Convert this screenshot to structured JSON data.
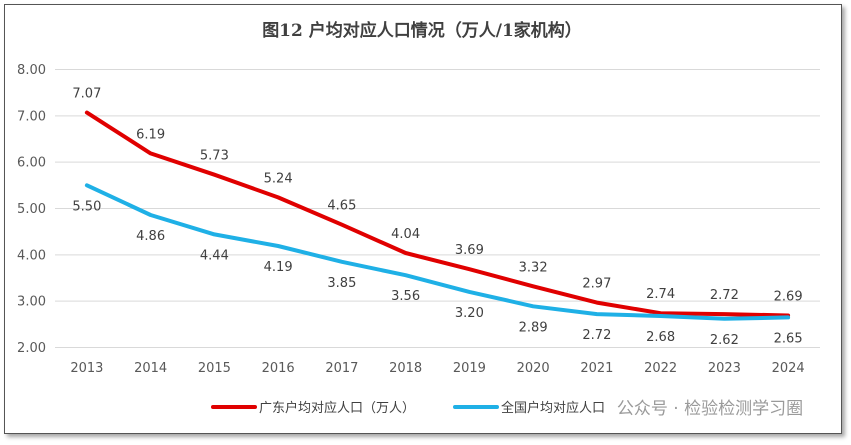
{
  "chart_data": {
    "type": "line",
    "title": "图12  户均对应人口情况（万人/1家机构）",
    "categories": [
      "2013",
      "2014",
      "2015",
      "2016",
      "2017",
      "2018",
      "2019",
      "2020",
      "2021",
      "2022",
      "2023",
      "2024"
    ],
    "series": [
      {
        "name": "广东户均对应人口（万人）",
        "color": "#e00000",
        "values": [
          7.07,
          6.19,
          5.73,
          5.24,
          4.65,
          4.04,
          3.69,
          3.32,
          2.97,
          2.74,
          2.72,
          2.69
        ]
      },
      {
        "name": "全国户均对应人口",
        "color": "#1fb0e6",
        "values": [
          5.5,
          4.86,
          4.44,
          4.19,
          3.85,
          3.56,
          3.2,
          2.89,
          2.72,
          2.68,
          2.62,
          2.65
        ]
      }
    ],
    "ylim": [
      2.0,
      8.0
    ],
    "yticks": [
      "2.00",
      "3.00",
      "4.00",
      "5.00",
      "6.00",
      "7.00",
      "8.00"
    ],
    "grid": true,
    "legend": "bottom"
  },
  "watermark": "公众号 · 检验检测学习圈"
}
